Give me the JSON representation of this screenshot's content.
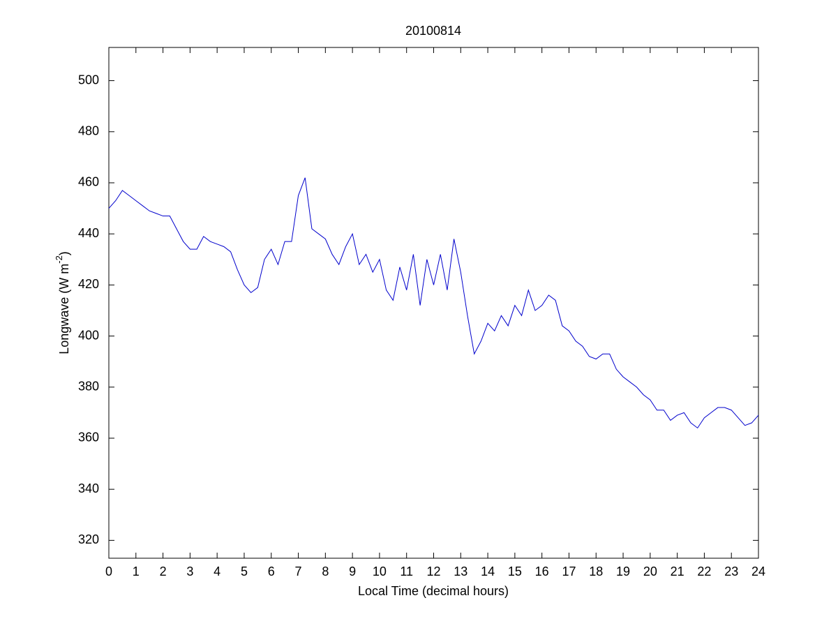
{
  "chart_data": {
    "type": "line",
    "title": "20100814",
    "xlabel": "Local Time (decimal hours)",
    "ylabel_parts": [
      "Longwave (W m",
      "-2",
      ")"
    ],
    "xlim": [
      0,
      24
    ],
    "xticks": [
      0,
      1,
      2,
      3,
      4,
      5,
      6,
      7,
      8,
      9,
      10,
      11,
      12,
      13,
      14,
      15,
      16,
      17,
      18,
      19,
      20,
      21,
      22,
      23,
      24
    ],
    "ylim": [
      313,
      513
    ],
    "yticks": [
      320,
      340,
      360,
      380,
      400,
      420,
      440,
      460,
      480,
      500
    ],
    "grid": false,
    "series": [
      {
        "color": "#0000cc",
        "x": [
          0,
          0.25,
          0.5,
          0.75,
          1,
          1.25,
          1.5,
          1.75,
          2,
          2.25,
          2.5,
          2.75,
          3,
          3.25,
          3.5,
          3.75,
          4,
          4.25,
          4.5,
          4.75,
          5,
          5.25,
          5.5,
          5.75,
          6,
          6.25,
          6.5,
          6.75,
          7,
          7.25,
          7.5,
          7.75,
          8,
          8.25,
          8.5,
          8.75,
          9,
          9.25,
          9.5,
          9.75,
          10,
          10.25,
          10.5,
          10.75,
          11,
          11.25,
          11.5,
          11.75,
          12,
          12.25,
          12.5,
          12.75,
          13,
          13.25,
          13.5,
          13.75,
          14,
          14.25,
          14.5,
          14.75,
          15,
          15.25,
          15.5,
          15.75,
          16,
          16.25,
          16.5,
          16.75,
          17,
          17.25,
          17.5,
          17.75,
          18,
          18.25,
          18.5,
          18.75,
          19,
          19.25,
          19.5,
          19.75,
          20,
          20.25,
          20.5,
          20.75,
          21,
          21.25,
          21.5,
          21.75,
          22,
          22.25,
          22.5,
          22.75,
          23,
          23.25,
          23.5,
          23.75,
          24
        ],
        "values": [
          450,
          453,
          457,
          455,
          453,
          451,
          449,
          448,
          447,
          447,
          442,
          437,
          434,
          434,
          439,
          437,
          436,
          435,
          433,
          426,
          420,
          417,
          419,
          430,
          434,
          428,
          437,
          437,
          455,
          462,
          442,
          440,
          438,
          432,
          428,
          435,
          440,
          428,
          432,
          425,
          430,
          418,
          414,
          427,
          418,
          432,
          412,
          430,
          420,
          432,
          418,
          438,
          425,
          408,
          393,
          398,
          405,
          402,
          408,
          404,
          412,
          408,
          418,
          410,
          412,
          416,
          414,
          404,
          402,
          398,
          396,
          392,
          391,
          393,
          393,
          387,
          384,
          382,
          380,
          377,
          375,
          371,
          371,
          367,
          369,
          370,
          366,
          364,
          368,
          370,
          372,
          372,
          371,
          368,
          365,
          366,
          369
        ]
      }
    ]
  }
}
